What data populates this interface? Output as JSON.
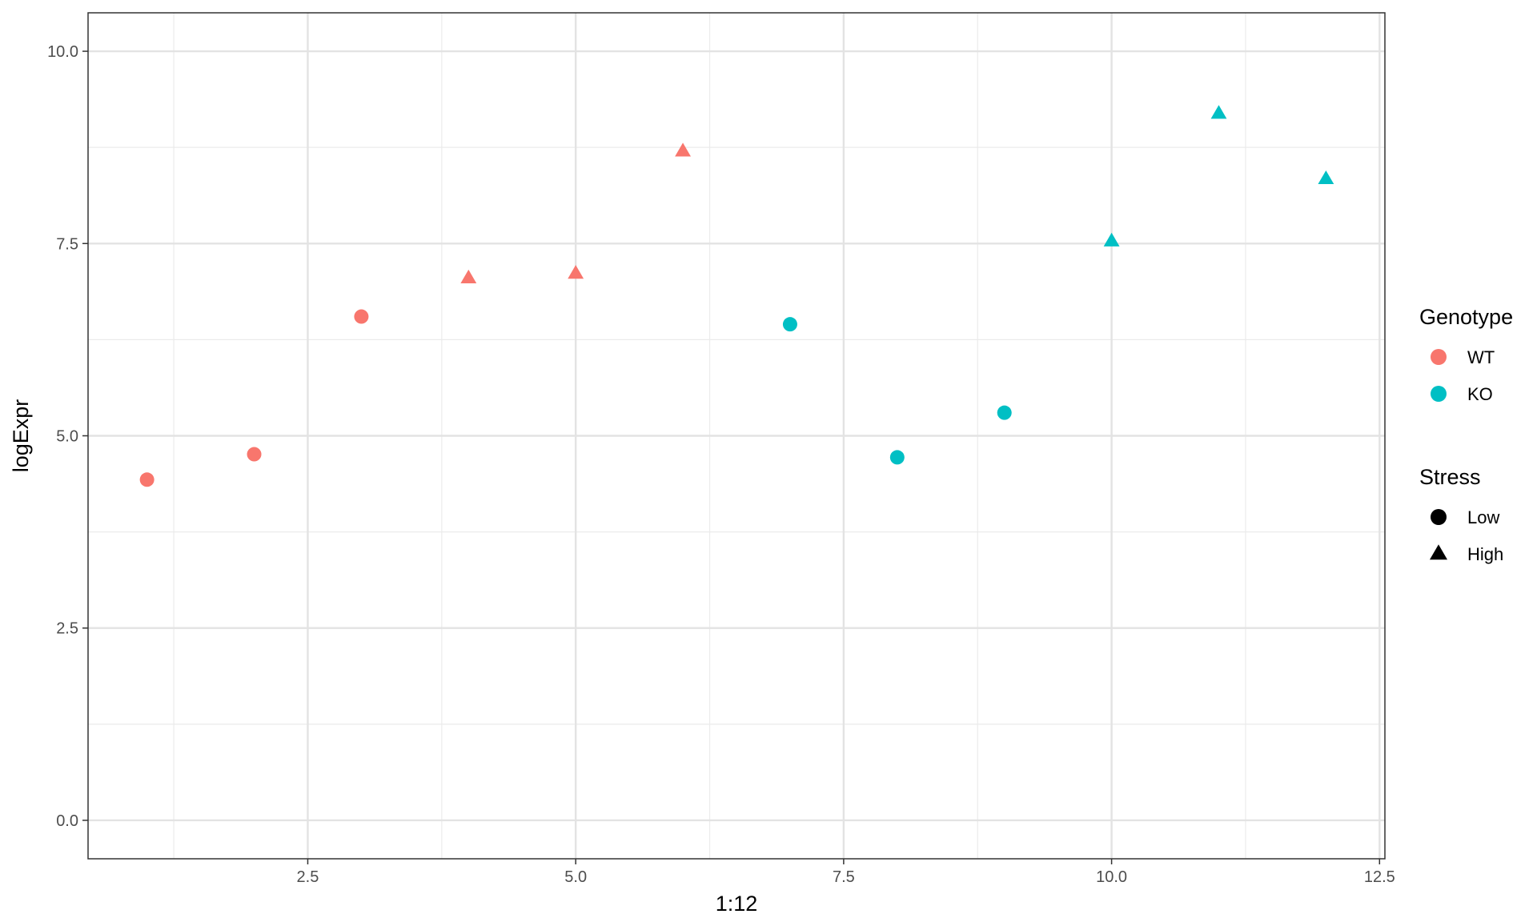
{
  "chart_data": {
    "type": "scatter",
    "xlabel": "1:12",
    "ylabel": "logExpr",
    "xlim": [
      0.45,
      12.55
    ],
    "ylim": [
      -0.5,
      10.5
    ],
    "x_ticks": [
      2.5,
      5.0,
      7.5,
      10.0,
      12.5
    ],
    "x_tick_labels": [
      "2.5",
      "5.0",
      "7.5",
      "10.0",
      "12.5"
    ],
    "y_ticks": [
      0.0,
      2.5,
      5.0,
      7.5,
      10.0
    ],
    "y_tick_labels": [
      "0.0",
      "2.5",
      "5.0",
      "7.5",
      "10.0"
    ],
    "grid": true,
    "legend_position": "right",
    "colors": {
      "WT": "#F8766D",
      "KO": "#00BFC4"
    },
    "legends": [
      {
        "title": "Genotype",
        "items": [
          {
            "label": "WT",
            "color": "#F8766D",
            "shape": "circle"
          },
          {
            "label": "KO",
            "color": "#00BFC4",
            "shape": "circle"
          }
        ]
      },
      {
        "title": "Stress",
        "items": [
          {
            "label": "Low",
            "color": "#000000",
            "shape": "circle"
          },
          {
            "label": "High",
            "color": "#000000",
            "shape": "triangle"
          }
        ]
      }
    ],
    "points": [
      {
        "x": 1,
        "y": 4.43,
        "genotype": "WT",
        "stress": "Low"
      },
      {
        "x": 2,
        "y": 4.76,
        "genotype": "WT",
        "stress": "Low"
      },
      {
        "x": 3,
        "y": 6.55,
        "genotype": "WT",
        "stress": "Low"
      },
      {
        "x": 4,
        "y": 7.05,
        "genotype": "WT",
        "stress": "High"
      },
      {
        "x": 5,
        "y": 7.11,
        "genotype": "WT",
        "stress": "High"
      },
      {
        "x": 6,
        "y": 8.7,
        "genotype": "WT",
        "stress": "High"
      },
      {
        "x": 7,
        "y": 6.45,
        "genotype": "KO",
        "stress": "Low"
      },
      {
        "x": 8,
        "y": 4.72,
        "genotype": "KO",
        "stress": "Low"
      },
      {
        "x": 9,
        "y": 5.3,
        "genotype": "KO",
        "stress": "Low"
      },
      {
        "x": 10,
        "y": 7.53,
        "genotype": "KO",
        "stress": "High"
      },
      {
        "x": 11,
        "y": 9.19,
        "genotype": "KO",
        "stress": "High"
      },
      {
        "x": 12,
        "y": 8.34,
        "genotype": "KO",
        "stress": "High"
      }
    ]
  }
}
